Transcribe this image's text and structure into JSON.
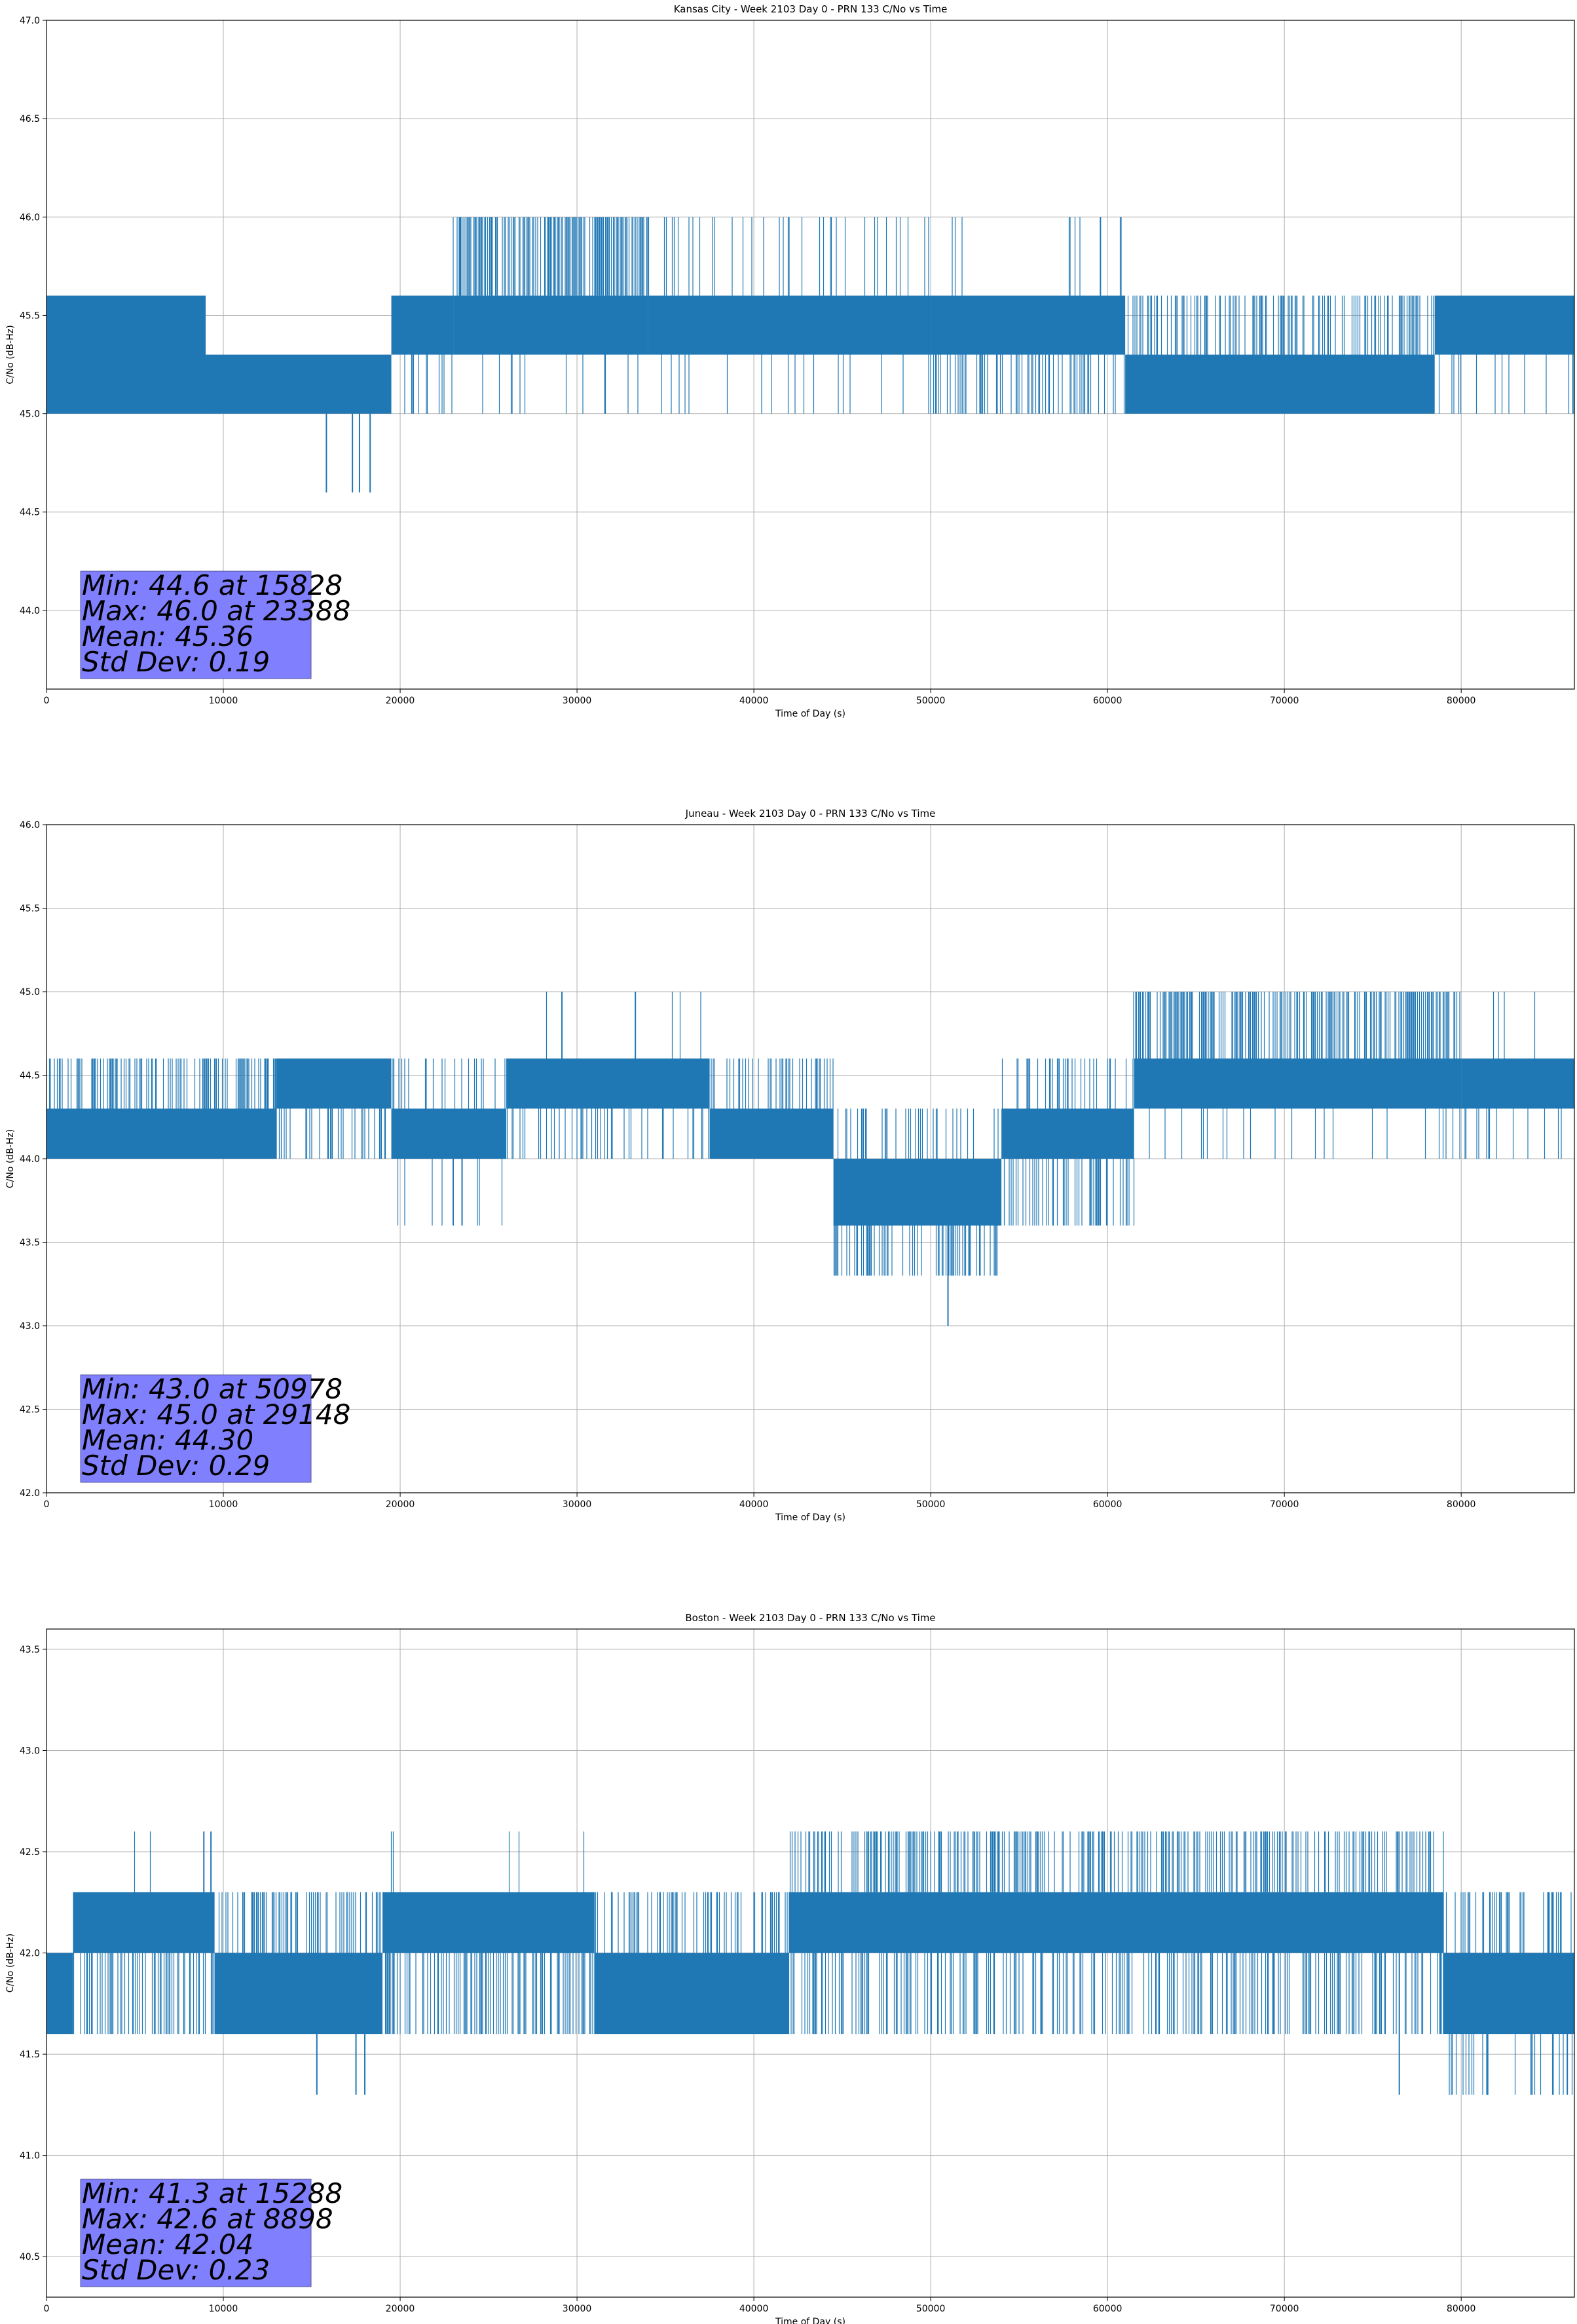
{
  "chart_data": [
    {
      "type": "line",
      "title": "Kansas City - Week 2103 Day 0 - PRN 133 C/No vs Time",
      "xlabel": "Time of Day (s)",
      "ylabel": "C/No (dB-Hz)",
      "xlim": [
        0,
        86400
      ],
      "ylim": [
        43.6,
        47.0
      ],
      "xticks": [
        0,
        10000,
        20000,
        30000,
        40000,
        50000,
        60000,
        70000,
        80000
      ],
      "xtick_labels": [
        "0",
        "10000",
        "20000",
        "30000",
        "40000",
        "50000",
        "60000",
        "70000",
        "80000"
      ],
      "yticks": [
        44.0,
        44.5,
        45.0,
        45.5,
        46.0,
        46.5,
        47.0
      ],
      "ytick_labels": [
        "44.0",
        "44.5",
        "45.0",
        "45.5",
        "46.0",
        "46.5",
        "47.0"
      ],
      "grid": true,
      "color": "#1f77b4",
      "stats": [
        "Min: 44.6 at 15828",
        "Max: 46.0 at 23388",
        "Mean: 45.36",
        "Std Dev: 0.19"
      ],
      "segments": [
        {
          "start": 0,
          "end": 9000,
          "band": [
            45.0,
            45.6
          ],
          "upper": 45.6,
          "lower": 45.0,
          "up_density": 0.5,
          "down_density": 0.2
        },
        {
          "start": 9000,
          "end": 19500,
          "band": [
            45.0,
            45.3
          ],
          "upper": 45.3,
          "lower": 45.0,
          "up_density": 0.1,
          "down_density": 0.05
        },
        {
          "start": 19500,
          "end": 23000,
          "band": [
            45.3,
            45.6
          ],
          "upper": 45.6,
          "lower": 45.0,
          "up_density": 0.3,
          "down_density": 0.2
        },
        {
          "start": 23000,
          "end": 34000,
          "band": [
            45.3,
            45.6
          ],
          "upper": 46.0,
          "lower": 45.0,
          "up_density": 0.6,
          "down_density": 0.05
        },
        {
          "start": 34000,
          "end": 50000,
          "band": [
            45.3,
            45.6
          ],
          "upper": 46.0,
          "lower": 45.0,
          "up_density": 0.1,
          "down_density": 0.05
        },
        {
          "start": 50000,
          "end": 61000,
          "band": [
            45.3,
            45.6
          ],
          "upper": 46.0,
          "lower": 45.0,
          "up_density": 0.05,
          "down_density": 0.3
        },
        {
          "start": 61000,
          "end": 78500,
          "band": [
            45.0,
            45.3
          ],
          "upper": 45.6,
          "lower": 45.0,
          "up_density": 0.4,
          "down_density": 0.4
        },
        {
          "start": 78500,
          "end": 86400,
          "band": [
            45.3,
            45.6
          ],
          "upper": 45.6,
          "lower": 45.0,
          "up_density": 0.1,
          "down_density": 0.1
        }
      ],
      "points": [
        [
          15828,
          44.6
        ],
        [
          17300,
          44.6
        ],
        [
          17700,
          44.6
        ],
        [
          18300,
          44.6
        ],
        [
          23388,
          46.0
        ],
        [
          59600,
          46.0
        ]
      ]
    },
    {
      "type": "line",
      "title": "Juneau - Week 2103 Day 0 - PRN 133 C/No vs Time",
      "xlabel": "Time of Day (s)",
      "ylabel": "C/No (dB-Hz)",
      "xlim": [
        0,
        86400
      ],
      "ylim": [
        42.0,
        46.0
      ],
      "xticks": [
        0,
        10000,
        20000,
        30000,
        40000,
        50000,
        60000,
        70000,
        80000
      ],
      "xtick_labels": [
        "0",
        "10000",
        "20000",
        "30000",
        "40000",
        "50000",
        "60000",
        "70000",
        "80000"
      ],
      "yticks": [
        42.0,
        42.5,
        43.0,
        43.5,
        44.0,
        44.5,
        45.0,
        45.5,
        46.0
      ],
      "ytick_labels": [
        "42.0",
        "42.5",
        "43.0",
        "43.5",
        "44.0",
        "44.5",
        "45.0",
        "45.5",
        "46.0"
      ],
      "grid": true,
      "color": "#1f77b4",
      "stats": [
        "Min: 43.0 at 50978",
        "Max: 45.0 at 29148",
        "Mean: 44.30",
        "Std Dev: 0.29"
      ],
      "segments": [
        {
          "start": 0,
          "end": 13000,
          "band": [
            44.0,
            44.3
          ],
          "upper": 44.6,
          "lower": 44.0,
          "up_density": 0.4,
          "down_density": 0.3
        },
        {
          "start": 13000,
          "end": 19500,
          "band": [
            44.3,
            44.6
          ],
          "upper": 44.6,
          "lower": 44.0,
          "up_density": 0.3,
          "down_density": 0.3
        },
        {
          "start": 19500,
          "end": 26000,
          "band": [
            44.0,
            44.3
          ],
          "upper": 44.6,
          "lower": 43.6,
          "up_density": 0.15,
          "down_density": 0.1
        },
        {
          "start": 26000,
          "end": 37500,
          "band": [
            44.3,
            44.6
          ],
          "upper": 45.0,
          "lower": 44.0,
          "up_density": 0.02,
          "down_density": 0.2
        },
        {
          "start": 37500,
          "end": 44500,
          "band": [
            44.0,
            44.3
          ],
          "upper": 44.6,
          "lower": 44.0,
          "up_density": 0.3,
          "down_density": 0.2
        },
        {
          "start": 44500,
          "end": 54000,
          "band": [
            43.6,
            44.0
          ],
          "upper": 44.3,
          "lower": 43.3,
          "up_density": 0.2,
          "down_density": 0.35
        },
        {
          "start": 54000,
          "end": 61500,
          "band": [
            44.0,
            44.3
          ],
          "upper": 44.6,
          "lower": 43.6,
          "up_density": 0.3,
          "down_density": 0.3
        },
        {
          "start": 61500,
          "end": 80000,
          "band": [
            44.3,
            44.6
          ],
          "upper": 45.0,
          "lower": 44.0,
          "up_density": 0.5,
          "down_density": 0.1
        },
        {
          "start": 80000,
          "end": 86400,
          "band": [
            44.3,
            44.6
          ],
          "upper": 45.0,
          "lower": 44.0,
          "up_density": 0.05,
          "down_density": 0.1
        }
      ],
      "points": [
        [
          50978,
          43.0
        ],
        [
          29148,
          45.0
        ],
        [
          33300,
          45.0
        ],
        [
          23000,
          43.6
        ],
        [
          23500,
          43.6
        ]
      ]
    },
    {
      "type": "line",
      "title": "Boston - Week 2103 Day 0 - PRN 133 C/No vs Time",
      "xlabel": "Time of Day (s)",
      "ylabel": "C/No (dB-Hz)",
      "xlim": [
        0,
        86400
      ],
      "ylim": [
        40.3,
        43.6
      ],
      "xticks": [
        0,
        10000,
        20000,
        30000,
        40000,
        50000,
        60000,
        70000,
        80000
      ],
      "xtick_labels": [
        "0",
        "10000",
        "20000",
        "30000",
        "40000",
        "50000",
        "60000",
        "70000",
        "80000"
      ],
      "yticks": [
        40.5,
        41.0,
        41.5,
        42.0,
        42.5,
        43.0,
        43.5
      ],
      "ytick_labels": [
        "40.5",
        "41.0",
        "41.5",
        "42.0",
        "42.5",
        "43.0",
        "43.5"
      ],
      "grid": true,
      "color": "#1f77b4",
      "stats": [
        "Min: 41.3 at 15288",
        "Max: 42.6 at 8898",
        "Mean: 42.04",
        "Std Dev: 0.23"
      ],
      "segments": [
        {
          "start": 0,
          "end": 1500,
          "band": [
            41.6,
            42.0
          ],
          "upper": 42.0,
          "lower": 41.6,
          "up_density": 0.1,
          "down_density": 0.1
        },
        {
          "start": 1500,
          "end": 9500,
          "band": [
            42.0,
            42.3
          ],
          "upper": 42.6,
          "lower": 41.6,
          "up_density": 0.02,
          "down_density": 0.4
        },
        {
          "start": 9500,
          "end": 19000,
          "band": [
            41.6,
            42.0
          ],
          "upper": 42.3,
          "lower": 41.6,
          "up_density": 0.4,
          "down_density": 0.1
        },
        {
          "start": 19000,
          "end": 31000,
          "band": [
            42.0,
            42.3
          ],
          "upper": 42.6,
          "lower": 41.6,
          "up_density": 0.02,
          "down_density": 0.4
        },
        {
          "start": 31000,
          "end": 42000,
          "band": [
            41.6,
            42.0
          ],
          "upper": 42.3,
          "lower": 41.6,
          "up_density": 0.35,
          "down_density": 0.1
        },
        {
          "start": 42000,
          "end": 79000,
          "band": [
            42.0,
            42.3
          ],
          "upper": 42.6,
          "lower": 41.6,
          "up_density": 0.4,
          "down_density": 0.3
        },
        {
          "start": 79000,
          "end": 86400,
          "band": [
            41.6,
            42.0
          ],
          "upper": 42.3,
          "lower": 41.3,
          "up_density": 0.3,
          "down_density": 0.2
        }
      ],
      "points": [
        [
          15288,
          41.3
        ],
        [
          8898,
          42.6
        ],
        [
          9300,
          42.6
        ],
        [
          17500,
          41.3
        ],
        [
          18000,
          41.3
        ],
        [
          76500,
          41.3
        ],
        [
          81500,
          41.3
        ],
        [
          84000,
          41.3
        ],
        [
          86000,
          41.3
        ]
      ]
    }
  ]
}
